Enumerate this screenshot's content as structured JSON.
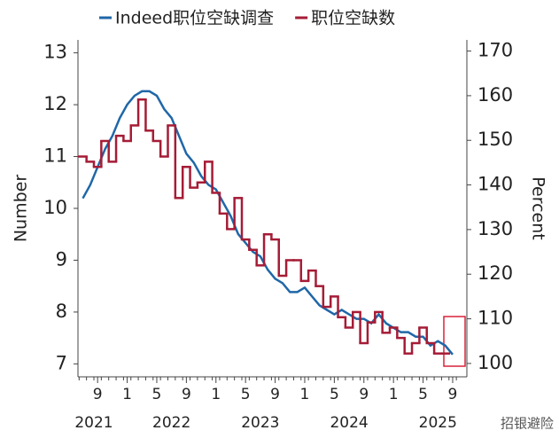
{
  "chart_data": {
    "type": "line",
    "legend": "top",
    "x": [
      "2021-07",
      "2021-08",
      "2021-09",
      "2021-10",
      "2021-11",
      "2021-12",
      "2022-01",
      "2022-02",
      "2022-03",
      "2022-04",
      "2022-05",
      "2022-06",
      "2022-07",
      "2022-08",
      "2022-09",
      "2022-10",
      "2022-11",
      "2022-12",
      "2023-01",
      "2023-02",
      "2023-03",
      "2023-04",
      "2023-05",
      "2023-06",
      "2023-07",
      "2023-08",
      "2023-09",
      "2023-10",
      "2023-11",
      "2023-12",
      "2024-01",
      "2024-02",
      "2024-03",
      "2024-04",
      "2024-05",
      "2024-06",
      "2024-07",
      "2024-08",
      "2024-09",
      "2024-10",
      "2024-11",
      "2024-12",
      "2025-01",
      "2025-02",
      "2025-03",
      "2025-04",
      "2025-05",
      "2025-06",
      "2025-07",
      "2025-08",
      "2025-09"
    ],
    "xticks": [
      {
        "value": "2021-09",
        "label": "9"
      },
      {
        "value": "2022-01",
        "label": "1"
      },
      {
        "value": "2022-05",
        "label": "5"
      },
      {
        "value": "2022-09",
        "label": "9"
      },
      {
        "value": "2023-01",
        "label": "1"
      },
      {
        "value": "2023-05",
        "label": "5"
      },
      {
        "value": "2023-09",
        "label": "9"
      },
      {
        "value": "2024-01",
        "label": "1"
      },
      {
        "value": "2024-05",
        "label": "5"
      },
      {
        "value": "2024-09",
        "label": "9"
      },
      {
        "value": "2025-01",
        "label": "1"
      },
      {
        "value": "2025-05",
        "label": "5"
      },
      {
        "value": "2025-09",
        "label": "9"
      }
    ],
    "years": [
      "2021",
      "2022",
      "2023",
      "2024",
      "2025"
    ],
    "ylabel": "Number",
    "y2label": "Percent",
    "ylim": [
      6.75,
      13.25
    ],
    "yticks": [
      7,
      8,
      9,
      10,
      11,
      12,
      13
    ],
    "y2lim": [
      97,
      172.5
    ],
    "y2ticks": [
      100,
      110,
      120,
      130,
      140,
      150,
      160,
      170
    ],
    "series": [
      {
        "name": "Indeed职位空缺调查",
        "color": "#1f67a8",
        "axis": "y2",
        "style": "line",
        "values": [
          137,
          140,
          144,
          148,
          151,
          155,
          158,
          160,
          161,
          161,
          160,
          157,
          155,
          151,
          147,
          145,
          142,
          140,
          139,
          136,
          133,
          129,
          127,
          125,
          124,
          121,
          119,
          118,
          116,
          116,
          117,
          115,
          113,
          112,
          111,
          112,
          111,
          110,
          110,
          109,
          111,
          109,
          108,
          107,
          107,
          106,
          106,
          104,
          105,
          104,
          102
        ]
      },
      {
        "name": "职位空缺数",
        "color": "#a51c36",
        "style": "step",
        "values": [
          11.0,
          10.9,
          10.8,
          11.3,
          10.9,
          11.4,
          11.3,
          11.6,
          12.1,
          11.5,
          11.3,
          11.0,
          11.6,
          10.2,
          10.8,
          10.4,
          10.5,
          10.9,
          10.3,
          9.9,
          9.6,
          10.2,
          9.4,
          9.2,
          8.9,
          9.5,
          9.4,
          8.7,
          9.0,
          9.0,
          8.6,
          8.8,
          8.5,
          8.1,
          8.3,
          7.9,
          7.7,
          8.0,
          7.4,
          7.8,
          8.0,
          7.6,
          7.7,
          7.5,
          7.2,
          7.4,
          7.7,
          7.4,
          7.2,
          7.2,
          null
        ]
      }
    ],
    "watermark": "招银避险"
  }
}
